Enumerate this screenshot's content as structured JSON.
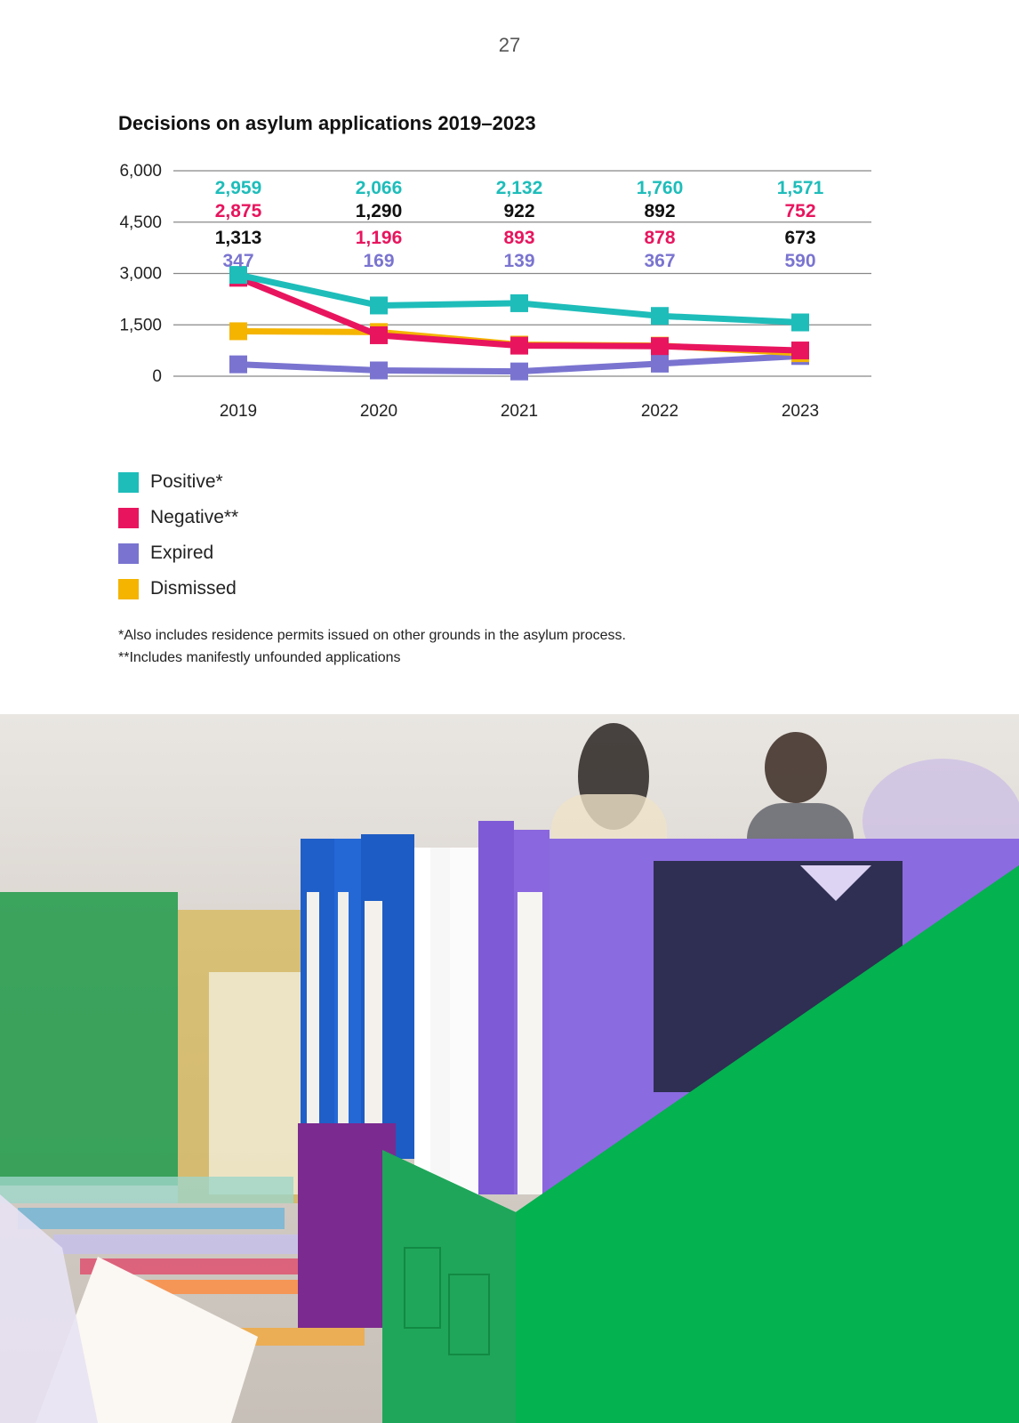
{
  "page": {
    "number": "27"
  },
  "chart_data": {
    "type": "line",
    "title": "Decisions on asylum applications 2019–2023",
    "xlabel": "",
    "ylabel": "",
    "ylim": [
      0,
      6000
    ],
    "yticks": [
      "6,000",
      "4,500",
      "3,000",
      "1,500",
      "0"
    ],
    "ytick_values": [
      6000,
      4500,
      3000,
      1500,
      0
    ],
    "categories": [
      "2019",
      "2020",
      "2021",
      "2022",
      "2023"
    ],
    "grid": true,
    "legend_position": "bottom-left",
    "series": [
      {
        "name": "Positive*",
        "color": "#1ebdba",
        "values": [
          2959,
          2066,
          2132,
          1760,
          1571
        ],
        "labels": [
          "2,959",
          "2,066",
          "2,132",
          "1,760",
          "1,571"
        ]
      },
      {
        "name": "Negative**",
        "color": "#e8155e",
        "values": [
          2875,
          1196,
          893,
          878,
          752
        ],
        "labels": [
          "2,875",
          "1,196",
          "893",
          "878",
          "752"
        ]
      },
      {
        "name": "Expired",
        "color": "#7a74d0",
        "values": [
          347,
          169,
          139,
          367,
          590
        ],
        "labels": [
          "347",
          "169",
          "139",
          "367",
          "590"
        ]
      },
      {
        "name": "Dismissed",
        "color": "#f4b400",
        "values": [
          1313,
          1290,
          922,
          892,
          673
        ],
        "labels": [
          "1,313",
          "1,290",
          "922",
          "892",
          "673"
        ]
      }
    ],
    "label_rows": [
      [
        {
          "s": 0,
          "c": "#1ebdba"
        },
        {
          "s": 0,
          "c": "#1ebdba"
        },
        {
          "s": 0,
          "c": "#1ebdba"
        },
        {
          "s": 0,
          "c": "#1ebdba"
        },
        {
          "s": 0,
          "c": "#1ebdba"
        }
      ],
      [
        {
          "s": 1,
          "c": "#e8155e"
        },
        {
          "s": 3,
          "c": "#111111"
        },
        {
          "s": 3,
          "c": "#111111"
        },
        {
          "s": 3,
          "c": "#111111"
        },
        {
          "s": 1,
          "c": "#e8155e"
        }
      ],
      [
        {
          "s": 3,
          "c": "#111111"
        },
        {
          "s": 1,
          "c": "#e8155e"
        },
        {
          "s": 1,
          "c": "#e8155e"
        },
        {
          "s": 1,
          "c": "#e8155e"
        },
        {
          "s": 3,
          "c": "#111111"
        }
      ],
      [
        {
          "s": 2,
          "c": "#7a74d0"
        },
        {
          "s": 2,
          "c": "#7a74d0"
        },
        {
          "s": 2,
          "c": "#7a74d0"
        },
        {
          "s": 2,
          "c": "#7a74d0"
        },
        {
          "s": 2,
          "c": "#7a74d0"
        }
      ]
    ]
  },
  "legend": [
    {
      "label": "Positive*",
      "color": "#1ebdba"
    },
    {
      "label": "Negative**",
      "color": "#e8155e"
    },
    {
      "label": "Expired",
      "color": "#7a74d0"
    },
    {
      "label": "Dismissed",
      "color": "#f4b400"
    }
  ],
  "footnotes": {
    "line1": "*Also includes residence permits issued on other grounds in the asylum process.",
    "line2": "**Includes manifestly unfounded applications"
  }
}
